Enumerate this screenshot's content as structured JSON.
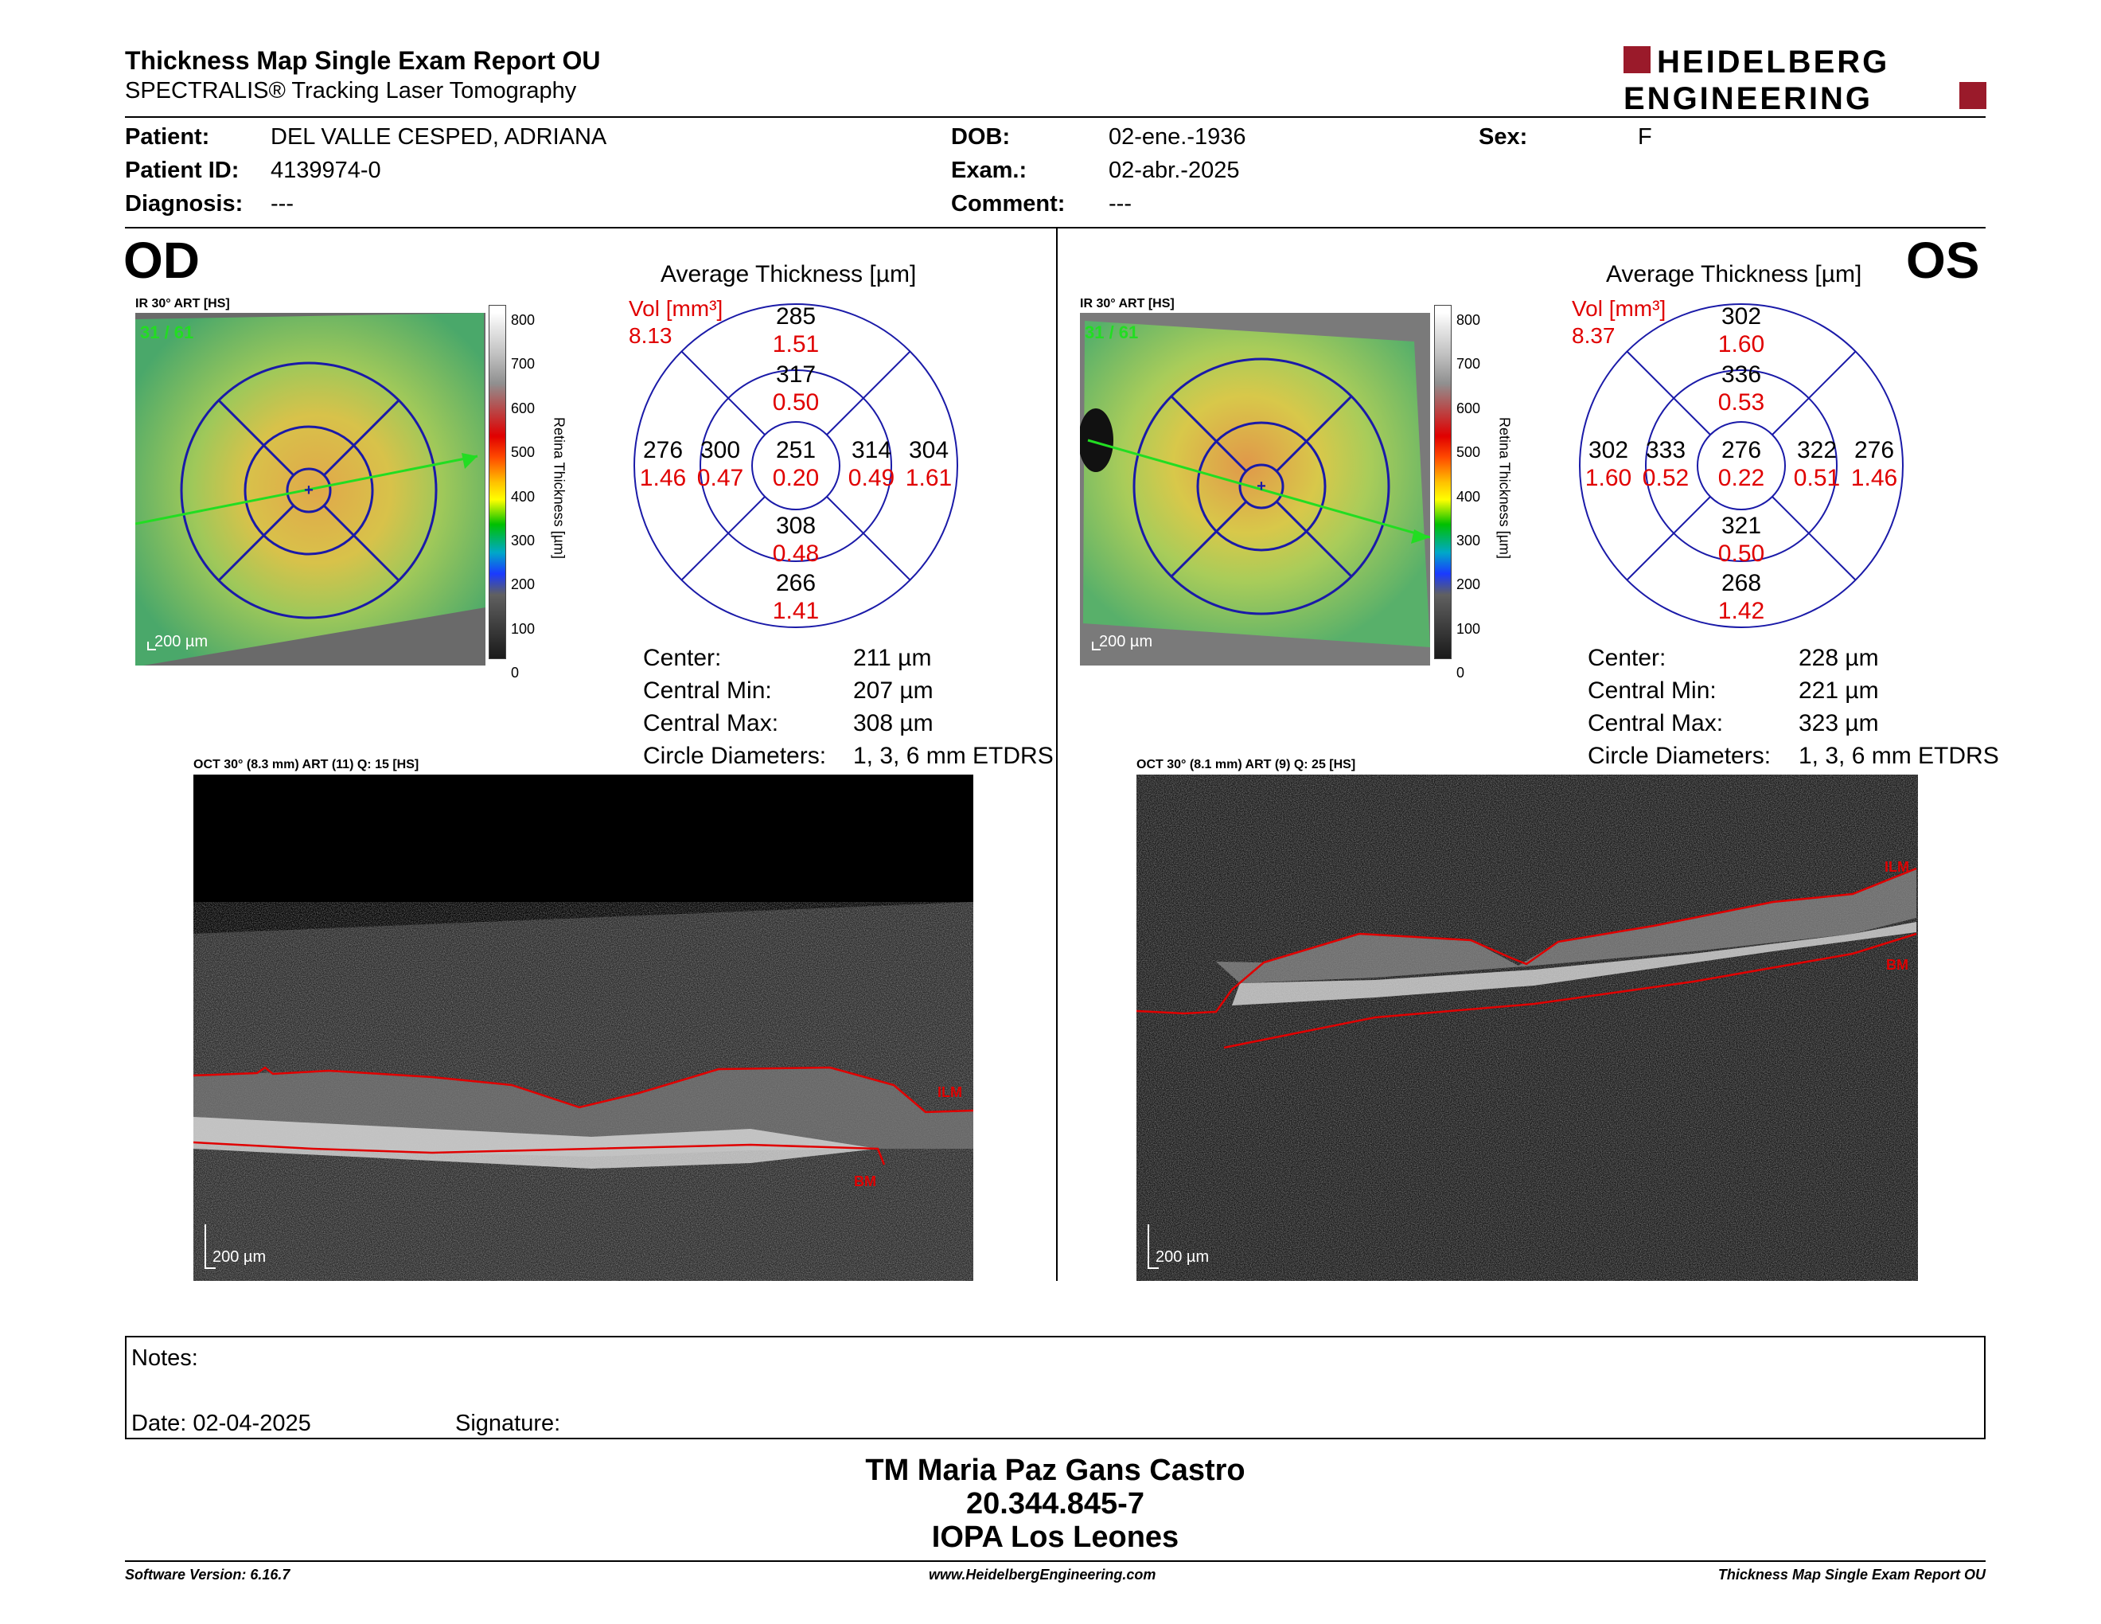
{
  "header": {
    "title": "Thickness Map Single Exam Report OU",
    "subtitle": "SPECTRALIS® Tracking Laser Tomography",
    "logo_line1": "HEIDELBERG",
    "logo_line2": "ENGINEERING"
  },
  "patient": {
    "patient_label": "Patient:",
    "patient_value": "DEL VALLE CESPED, ADRIANA",
    "id_label": "Patient ID:",
    "id_value": "4139974-0",
    "diag_label": "Diagnosis:",
    "diag_value": "---",
    "dob_label": "DOB:",
    "dob_value": "02-ene.-1936",
    "exam_label": "Exam.:",
    "exam_value": "02-abr.-2025",
    "comment_label": "Comment:",
    "comment_value": "---",
    "sex_label": "Sex:",
    "sex_value": "F"
  },
  "od": {
    "eye": "OD",
    "ir_label": "IR 30° ART [HS]",
    "ir_count": "31 / 61",
    "scale": "200 µm",
    "avg_title": "Average Thickness [µm]",
    "vol_label": "Vol [mm³]",
    "vol_value": "8.13",
    "grid": {
      "center": {
        "t": "251",
        "v": "0.20"
      },
      "inner_sup": {
        "t": "317",
        "v": "0.50"
      },
      "inner_nas": {
        "t": "314",
        "v": "0.49"
      },
      "inner_inf": {
        "t": "308",
        "v": "0.48"
      },
      "inner_tmp": {
        "t": "300",
        "v": "0.47"
      },
      "outer_sup": {
        "t": "285",
        "v": "1.51"
      },
      "outer_nas": {
        "t": "304",
        "v": "1.61"
      },
      "outer_inf": {
        "t": "266",
        "v": "1.41"
      },
      "outer_tmp": {
        "t": "276",
        "v": "1.46"
      }
    },
    "stats": {
      "center_label": "Center:",
      "center_value": "211 µm",
      "min_label": "Central Min:",
      "min_value": "207 µm",
      "max_label": "Central Max:",
      "max_value": "308 µm",
      "circ_label": "Circle Diameters:",
      "circ_value": "1, 3, 6 mm ETDRS"
    },
    "oct_label": "OCT 30° (8.3 mm) ART (11) Q: 15 [HS]",
    "ilm": "ILM",
    "bm": "BM"
  },
  "os": {
    "eye": "OS",
    "ir_label": "IR 30° ART [HS]",
    "ir_count": "31 / 61",
    "scale": "200 µm",
    "avg_title": "Average Thickness [µm]",
    "vol_label": "Vol [mm³]",
    "vol_value": "8.37",
    "grid": {
      "center": {
        "t": "276",
        "v": "0.22"
      },
      "inner_sup": {
        "t": "336",
        "v": "0.53"
      },
      "inner_nas": {
        "t": "333",
        "v": "0.52"
      },
      "inner_inf": {
        "t": "321",
        "v": "0.50"
      },
      "inner_tmp": {
        "t": "322",
        "v": "0.51"
      },
      "outer_sup": {
        "t": "302",
        "v": "1.60"
      },
      "outer_nas": {
        "t": "302",
        "v": "1.60"
      },
      "outer_inf": {
        "t": "268",
        "v": "1.42"
      },
      "outer_tmp": {
        "t": "276",
        "v": "1.46"
      }
    },
    "stats": {
      "center_label": "Center:",
      "center_value": "228 µm",
      "min_label": "Central Min:",
      "min_value": "221 µm",
      "max_label": "Central Max:",
      "max_value": "323 µm",
      "circ_label": "Circle Diameters:",
      "circ_value": "1, 3, 6 mm ETDRS"
    },
    "oct_label": "OCT 30° (8.1 mm) ART (9) Q: 25 [HS]",
    "ilm": "ILM",
    "bm": "BM"
  },
  "colorbar": {
    "ticks": [
      "800",
      "700",
      "600",
      "500",
      "400",
      "300",
      "200",
      "100",
      "0"
    ],
    "title": "Retina Thickness [µm]"
  },
  "notes": {
    "notes_label": "Notes:",
    "date_label": "Date: 02-04-2025",
    "signature_label": "Signature:"
  },
  "signature": {
    "name": "TM Maria Paz Gans Castro",
    "id": "20.344.845-7",
    "place": "IOPA Los Leones"
  },
  "footer": {
    "version": "Software Version: 6.16.7",
    "url": "www.HeidelbergEngineering.com",
    "report": "Thickness Map Single Exam Report OU"
  },
  "colors": {
    "red": "#e00000",
    "blue": "#1a1aa8",
    "brand": "#9a1a2a",
    "green": "#22dd22"
  }
}
